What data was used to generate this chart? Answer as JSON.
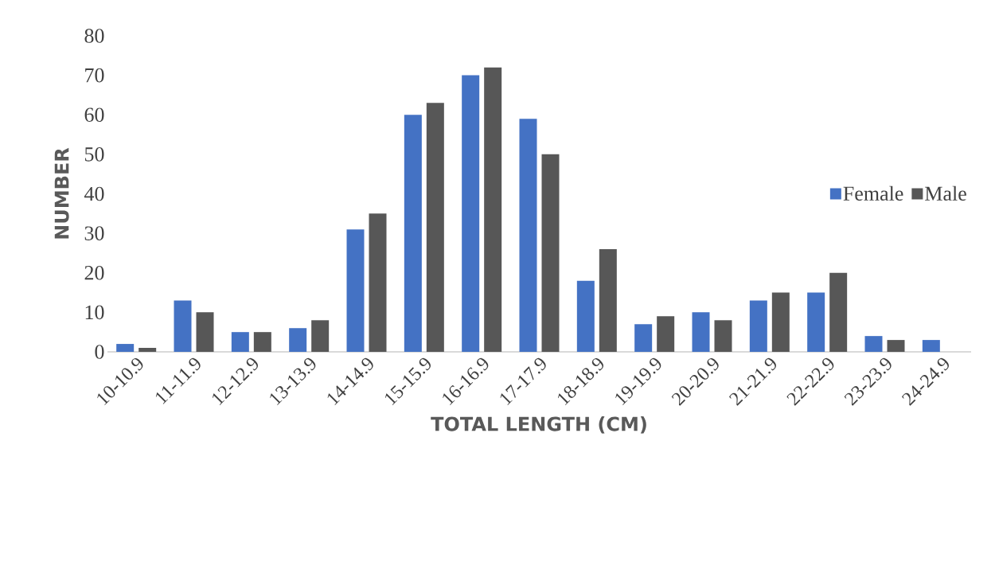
{
  "chart_data": {
    "type": "bar",
    "xlabel": "TOTAL LENGTH (CM)",
    "ylabel": "NUMBER",
    "categories": [
      "10-10.9",
      "11-11.9",
      "12-12.9",
      "13-13.9",
      "14-14.9",
      "15-15.9",
      "16-16.9",
      "17-17.9",
      "18-18.9",
      "19-19.9",
      "20-20.9",
      "21-21.9",
      "22-22.9",
      "23-23.9",
      "24-24.9"
    ],
    "series": [
      {
        "name": "Female",
        "color": "#4472c4",
        "values": [
          2,
          13,
          5,
          6,
          31,
          60,
          70,
          59,
          18,
          7,
          10,
          13,
          15,
          4,
          3
        ]
      },
      {
        "name": "Male",
        "color": "#575757",
        "values": [
          1,
          10,
          5,
          8,
          35,
          63,
          72,
          50,
          26,
          9,
          8,
          15,
          20,
          3,
          0
        ]
      }
    ],
    "ylim": [
      0,
      80
    ],
    "yticks": [
      0,
      10,
      20,
      30,
      40,
      50,
      60,
      70,
      80
    ],
    "grid": false,
    "legend": "right"
  }
}
